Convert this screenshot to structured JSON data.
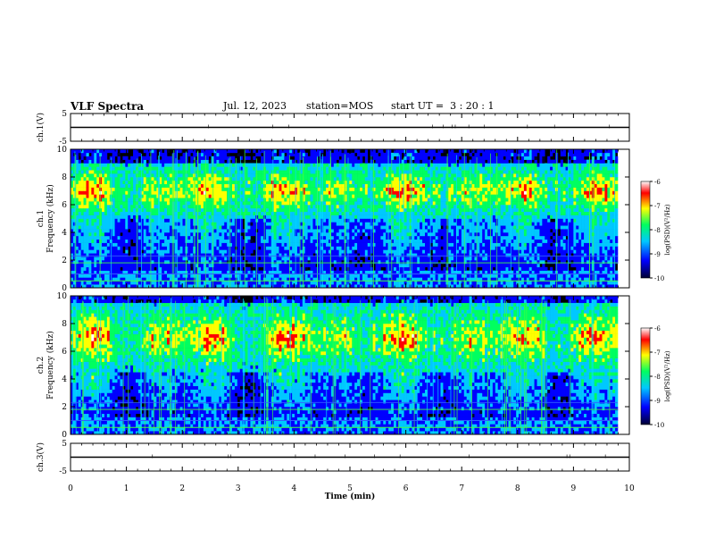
{
  "header": {
    "title": "VLF Spectra",
    "date": "Jul. 12, 2023",
    "station": "station=MOS",
    "start": "start UT =  3 : 20 : 1"
  },
  "colors": {
    "spectrum": [
      "#000033",
      "#0000ff",
      "#00c8ff",
      "#00ff60",
      "#ffff00",
      "#ff0000",
      "#ffffff"
    ],
    "axis": "#000000",
    "hline_blue": "#3060ff",
    "hline_green": "#40ff40"
  },
  "chart_data": [
    {
      "type": "line",
      "panel": "ch1",
      "ylabel": "ch.1(V)",
      "ylim": [
        -5,
        5
      ],
      "y_ticklabels": [
        "5",
        "-5"
      ],
      "x": [
        0,
        10
      ],
      "series": [
        {
          "values": [
            0,
            0
          ]
        }
      ]
    },
    {
      "type": "heatmap",
      "panel": "ch1-spectrogram",
      "ylabel": "ch.1\nFrequency (kHz)",
      "ylim": [
        0,
        10
      ],
      "y_ticklabels": [
        "0",
        "2",
        "4",
        "6",
        "8",
        "10"
      ],
      "xlim": [
        0,
        10
      ],
      "band_kHz": [
        5,
        9
      ],
      "peak_log_psd": -7,
      "horizontal_lines_kHz": [
        0.5,
        1.0,
        1.8,
        2.3
      ],
      "colorbar": {
        "label": "log(PSD)(V²/Hz)",
        "ticklabels": [
          "-6",
          "-7",
          "-8",
          "-9",
          "-10"
        ],
        "range": [
          -10,
          -6
        ]
      }
    },
    {
      "type": "heatmap",
      "panel": "ch2-spectrogram",
      "ylabel": "ch.2\nFrequency (kHz)",
      "ylim": [
        0,
        10
      ],
      "y_ticklabels": [
        "0",
        "2",
        "4",
        "6",
        "8",
        "10"
      ],
      "xlim": [
        0,
        10
      ],
      "band_kHz": [
        4.5,
        9.5
      ],
      "peak_log_psd": -7,
      "horizontal_lines_kHz": [
        0.5,
        1.0,
        1.8,
        2.3
      ],
      "colorbar": {
        "label": "log(PSD)(V²/Hz)",
        "ticklabels": [
          "-6",
          "-7",
          "-8",
          "-9",
          "-10"
        ],
        "range": [
          -10,
          -6
        ]
      }
    },
    {
      "type": "line",
      "panel": "ch3",
      "ylabel": "ch.3(V)",
      "ylim": [
        -5,
        5
      ],
      "y_ticklabels": [
        "5",
        "-5"
      ],
      "x": [
        0,
        10
      ],
      "series": [
        {
          "values": [
            0,
            0
          ]
        }
      ],
      "xlabel": "Time (min)",
      "x_ticklabels": [
        "0",
        "1",
        "2",
        "3",
        "4",
        "5",
        "6",
        "7",
        "8",
        "9",
        "10"
      ],
      "xlim": [
        0,
        10
      ]
    }
  ]
}
